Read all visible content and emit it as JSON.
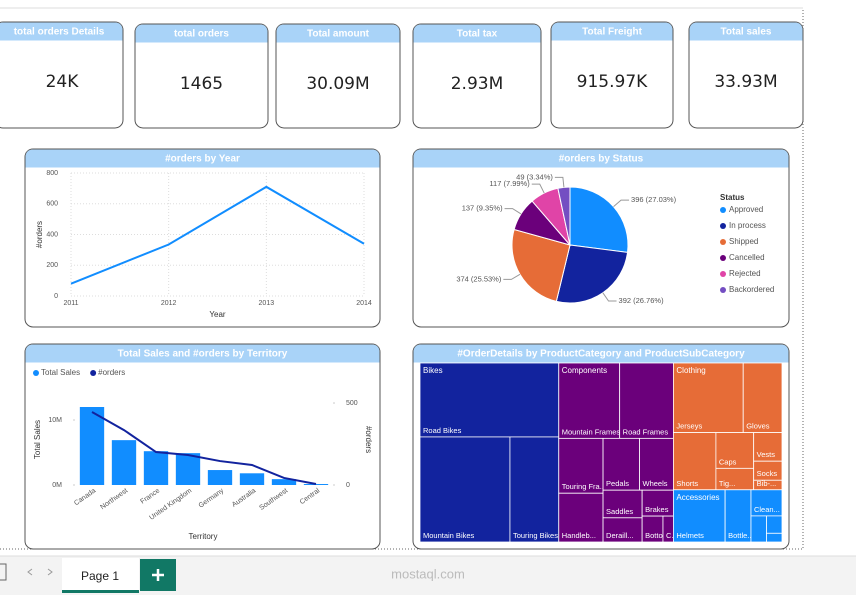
{
  "cards": [
    {
      "label": "total orders Details",
      "value": "24K"
    },
    {
      "label": "total orders",
      "value": "1465"
    },
    {
      "label": "Total amount",
      "value": "30.09M"
    },
    {
      "label": "Total tax",
      "value": "2.93M"
    },
    {
      "label": "Total Freight",
      "value": "915.97K"
    },
    {
      "label": "Total sales",
      "value": "33.93M"
    }
  ],
  "chart_data": [
    {
      "type": "line",
      "title": "#orders by Year",
      "x": [
        2011,
        2012,
        2013,
        2014
      ],
      "values": [
        80,
        335,
        710,
        340
      ],
      "color": "#118dff",
      "xlim": [
        2011,
        2014
      ],
      "xticks": [
        2011,
        2012,
        2013,
        2014
      ],
      "ylim": [
        0,
        800
      ],
      "yticks": [
        0,
        200,
        400,
        600,
        800
      ],
      "xlabel": "Year",
      "ylabel": "#orders",
      "grid": true
    },
    {
      "type": "pie",
      "title": "#orders by Status",
      "legend_title": "Status",
      "categories": [
        "Approved",
        "In process",
        "Shipped",
        "Cancelled",
        "Rejected",
        "Backordered"
      ],
      "values": [
        396,
        392,
        374,
        137,
        117,
        49
      ],
      "value_labels": [
        "396 (27.03%)",
        "392 (26.76%)",
        "374 (25.53%)",
        "137 (9.35%)",
        "117 (7.99%)",
        "49 (3.34%)"
      ],
      "colors": [
        "#118dff",
        "#12239e",
        "#e66c37",
        "#6b007b",
        "#e044a7",
        "#744ec2"
      ],
      "legend": "right"
    },
    {
      "type": "combo",
      "title": "Total Sales and #orders by Territory",
      "categories": [
        "Canada",
        "Northwest",
        "France",
        "United Kingdom",
        "Germany",
        "Australia",
        "Southwest",
        "Central"
      ],
      "series": [
        {
          "name": "Total Sales",
          "color": "#118dff",
          "values": [
            12000000,
            6900000,
            5200000,
            4900000,
            2300000,
            1800000,
            900000,
            150000
          ]
        },
        {
          "name": "#orders",
          "color": "#12239e",
          "axis": "y2",
          "values": [
            445,
            335,
            201,
            183,
            146,
            122,
            43,
            6
          ]
        }
      ],
      "ylim": [
        0,
        14000000
      ],
      "yticks": [
        {
          "value": 0,
          "label": "0M"
        },
        {
          "value": 10000000,
          "label": "10M"
        }
      ],
      "y2lim": [
        0,
        555
      ],
      "y2ticks": [
        0,
        500
      ],
      "xlabel": "Territory",
      "ylabel": "Total Sales",
      "y2label": "#orders",
      "legend": "top-left"
    },
    {
      "type": "treemap",
      "title": "#OrderDetails by ProductCategory and ProductSubCategory",
      "groups": [
        {
          "name": "Bikes",
          "color": "#12239e",
          "items": [
            {
              "name": "Road Bikes",
              "value": 3800
            },
            {
              "name": "Mountain Bikes",
              "value": 3500
            },
            {
              "name": "Touring Bikes",
              "value": 1900
            }
          ]
        },
        {
          "name": "Components",
          "color": "#6b007b",
          "items": [
            {
              "name": "Mountain Frames",
              "value": 1700
            },
            {
              "name": "Road Frames",
              "value": 1500
            },
            {
              "name": "Touring Fra...",
              "value": 900
            },
            {
              "name": "Handleb...",
              "value": 800
            },
            {
              "name": "Pedals",
              "value": 700
            },
            {
              "name": "Wheels",
              "value": 650
            },
            {
              "name": "Saddles",
              "value": 400
            },
            {
              "name": "Deraill...",
              "value": 350
            },
            {
              "name": "Brakes",
              "value": 300
            },
            {
              "name": "Botto...",
              "value": 200
            },
            {
              "name": "C...",
              "value": 100
            }
          ]
        },
        {
          "name": "Clothing",
          "color": "#e66c37",
          "items": [
            {
              "name": "Jerseys",
              "value": 1800
            },
            {
              "name": "Gloves",
              "value": 1000
            },
            {
              "name": "Shorts",
              "value": 900
            },
            {
              "name": "Caps",
              "value": 500
            },
            {
              "name": "Tig...",
              "value": 300
            },
            {
              "name": "Vests",
              "value": 300
            },
            {
              "name": "Socks",
              "value": 200
            },
            {
              "name": "Bib-...",
              "value": 100
            }
          ]
        },
        {
          "name": "Accessories",
          "color": "#118dff",
          "items": [
            {
              "name": "Helmets",
              "value": 1000
            },
            {
              "name": "Bottle...",
              "value": 500
            },
            {
              "name": "Clean...",
              "value": 300
            },
            {
              "name": null,
              "value": 150
            },
            {
              "name": null,
              "value": 100
            },
            {
              "name": null,
              "value": 50
            }
          ]
        }
      ]
    }
  ],
  "footer": {
    "tab": "Page 1",
    "watermark": "mostaql.com"
  }
}
